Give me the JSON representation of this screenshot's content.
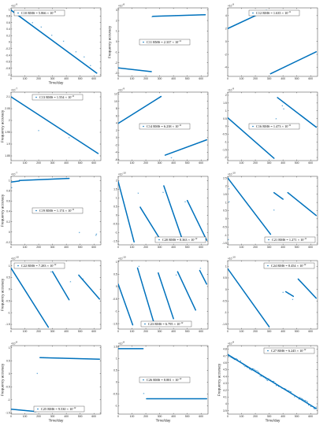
{
  "figure": {
    "marker_color": "#0072BD",
    "axis_color": "#262626"
  },
  "chart_data": [
    {
      "type": "scatter",
      "legend": "C10 RMS = 5.866 × 10^{-11}",
      "multiplier": "×10^{-9}",
      "xlabel": "Time/day",
      "ylabel": "",
      "xlim": [
        0,
        650
      ],
      "ylim": [
        -1.05,
        1.05
      ],
      "xticks": [
        0,
        100,
        200,
        300,
        400,
        500,
        600
      ],
      "yticks": [
        -1,
        -0.8,
        -0.6,
        -0.4,
        -0.2,
        0,
        0.2,
        0.4,
        0.6,
        0.8,
        1
      ],
      "legend_loc": "top-left",
      "segments": [
        {
          "x": [
            0,
            620
          ],
          "y": [
            0.98,
            -0.95
          ]
        }
      ],
      "points": {
        "x": [
          155,
          218,
          295,
          380,
          470,
          530,
          575
        ],
        "y": [
          0.58,
          0.45,
          0.19,
          0.02,
          -0.31,
          -0.47,
          -0.73
        ]
      }
    },
    {
      "type": "scatter",
      "legend": "C11 RMS = 2.337 × 10^{-11}",
      "multiplier": "×10^{-8}",
      "xlabel": "",
      "ylabel": "Frequency accuracy",
      "xlim": [
        0,
        650
      ],
      "ylim": [
        -3.3,
        3.2
      ],
      "xticks": [
        0,
        100,
        200,
        300,
        400,
        500,
        600
      ],
      "yticks": [
        -3,
        -2,
        -1,
        0,
        1,
        2,
        3
      ],
      "legend_loc": "center",
      "segments": [
        {
          "x": [
            0,
            240
          ],
          "y": [
            -2.5,
            -2.85
          ]
        },
        {
          "x": [
            250,
            630
          ],
          "y": [
            2.4,
            2.55
          ]
        }
      ],
      "points": {
        "x": [
          245
        ],
        "y": [
          2.3
        ]
      }
    },
    {
      "type": "scatter",
      "legend": "C12 RMS = 1.635 × 10^{-11}",
      "multiplier": "×10^{-9}",
      "xlabel": "",
      "ylabel": "",
      "xlim": [
        0,
        650
      ],
      "ylim": [
        -5.4,
        5.2
      ],
      "xticks": [
        0,
        100,
        200,
        300,
        400,
        500,
        600
      ],
      "yticks": [
        -4,
        -2,
        0,
        2,
        4
      ],
      "legend_loc": "top-center",
      "segments": [
        {
          "x": [
            0,
            280
          ],
          "y": [
            2.0,
            4.8
          ]
        },
        {
          "x": [
            310,
            640
          ],
          "y": [
            -5.0,
            -1.6
          ]
        }
      ],
      "points": {
        "x": [],
        "y": []
      }
    },
    {
      "type": "scatter",
      "legend": "C13 RMS = 1.554 × 10^{-11}",
      "multiplier": "×10^{-7}",
      "xlabel": "",
      "ylabel": "Frequency accuracy",
      "xlim": [
        0,
        650
      ],
      "ylim": [
        1.83,
        2.12
      ],
      "xticks": [
        0,
        100,
        200,
        300,
        400,
        500,
        600
      ],
      "yticks": [
        1.85,
        1.9,
        1.95,
        2.0,
        2.05,
        2.1
      ],
      "legend_loc": "top-center",
      "segments": [
        {
          "x": [
            0,
            630
          ],
          "y": [
            2.1,
            1.86
          ]
        }
      ],
      "points": {
        "x": [
          200,
          420
        ],
        "y": [
          1.955,
          1.925
        ]
      }
    },
    {
      "type": "scatter",
      "legend": "C14 RMS = 6.238 × 10^{-11}",
      "multiplier": "×10^{-9}",
      "xlabel": "",
      "ylabel": "",
      "xlim": [
        0,
        650
      ],
      "ylim": [
        -6.3,
        12.5
      ],
      "xticks": [
        0,
        100,
        200,
        300,
        400,
        500,
        600
      ],
      "yticks": [
        -6,
        -4,
        -2,
        0,
        2,
        4,
        6,
        8,
        10,
        12
      ],
      "legend_loc": "center",
      "segments": [
        {
          "x": [
            0,
            310
          ],
          "y": [
            3.9,
            11.3
          ]
        },
        {
          "x": [
            340,
            640
          ],
          "y": [
            -4.8,
            -0.6
          ]
        }
      ],
      "points": {
        "x": [
          385
        ],
        "y": [
          -5.6
        ]
      }
    },
    {
      "type": "scatter",
      "legend": "C16 RMS = 1.473 × 10^{-11}",
      "multiplier": "×10^{-9}",
      "xlabel": "",
      "ylabel": "",
      "xlim": [
        0,
        650
      ],
      "ylim": [
        -2.2,
        2.2
      ],
      "xticks": [
        0,
        100,
        200,
        300,
        400,
        500,
        600
      ],
      "yticks": [
        -2,
        -1.5,
        -1,
        -0.5,
        0,
        0.5,
        1,
        1.5,
        2
      ],
      "legend_loc": "center",
      "segments": [
        {
          "x": [
            0,
            335
          ],
          "y": [
            0.55,
            -2.05
          ]
        },
        {
          "x": [
            360,
            640
          ],
          "y": [
            1.85,
            -0.05
          ]
        }
      ],
      "points": {
        "x": [
          350,
          395,
          405
        ],
        "y": [
          0.45,
          1.3,
          1.1
        ]
      }
    },
    {
      "type": "scatter",
      "legend": "C19 RMS = 1.174 × 10^{-11}",
      "multiplier": "×10^{-7}",
      "xlabel": "",
      "ylabel": "Frequency accuracy",
      "xlim": [
        0,
        650
      ],
      "ylim": [
        -0.25,
        1.08
      ],
      "xticks": [
        0,
        100,
        200,
        300,
        400,
        500,
        600
      ],
      "yticks": [
        -0.2,
        0,
        0.2,
        0.4,
        0.6,
        0.8,
        1
      ],
      "legend_loc": "center",
      "segments": [
        {
          "x": [
            0,
            60
          ],
          "y": [
            0.97,
            0.99
          ]
        },
        {
          "x": [
            60,
            420
          ],
          "y": [
            1.0,
            1.04
          ]
        }
      ],
      "points": {
        "x": [
          5,
          495,
          615,
          618
        ],
        "y": [
          0.85,
          -0.02,
          -0.07,
          -0.05
        ]
      }
    },
    {
      "type": "scatter",
      "legend": "C20 RMS = 8.363 × 10^{-12}",
      "multiplier": "×10^{-10}",
      "xlabel": "",
      "ylabel": "",
      "xlim": [
        0,
        650
      ],
      "ylim": [
        -1.72,
        2.25
      ],
      "xticks": [
        0,
        100,
        200,
        300,
        400,
        500,
        600
      ],
      "yticks": [
        -1.5,
        -1,
        -0.5,
        0,
        0.5,
        1,
        1.5,
        2
      ],
      "legend_loc": "bottom-right",
      "segments": [
        {
          "x": [
            0,
            115
          ],
          "y": [
            1.95,
            -1.55
          ]
        },
        {
          "x": [
            160,
            315
          ],
          "y": [
            0.45,
            -1.55
          ]
        },
        {
          "x": [
            330,
            470
          ],
          "y": [
            1.7,
            -1.55
          ]
        },
        {
          "x": [
            500,
            640
          ],
          "y": [
            0.85,
            -1.45
          ]
        }
      ],
      "points": {
        "x": [
          145,
          160,
          325,
          485
        ],
        "y": [
          1.25,
          0.45,
          1.3,
          0.75
        ]
      }
    },
    {
      "type": "scatter",
      "legend": "C21 RMS = 1.271 × 10^{-11}",
      "multiplier": "×10^{-10}",
      "xlabel": "",
      "ylabel": "",
      "xlim": [
        0,
        650
      ],
      "ylim": [
        -1.6,
        2.6
      ],
      "xticks": [
        0,
        100,
        200,
        300,
        400,
        500,
        600
      ],
      "yticks": [
        -1.5,
        -1,
        -0.5,
        0,
        0.5,
        1,
        1.5,
        2,
        2.5
      ],
      "legend_loc": "bottom-right",
      "segments": [
        {
          "x": [
            0,
            310
          ],
          "y": [
            2.5,
            -0.95
          ]
        },
        {
          "x": [
            335,
            400
          ],
          "y": [
            1.6,
            1.2
          ]
        },
        {
          "x": [
            435,
            640
          ],
          "y": [
            1.6,
            0.2
          ]
        }
      ],
      "points": {
        "x": [
          10,
          5,
          335,
          10
        ],
        "y": [
          1.0,
          -1.3,
          0.5,
          1.8
        ]
      }
    },
    {
      "type": "scatter",
      "legend": "C22 RMS = 7.283 × 10^{-12}",
      "multiplier": "×10^{-10}",
      "xlabel": "",
      "ylabel": "Frequency accuracy",
      "xlim": [
        0,
        650
      ],
      "ylim": [
        -1.7,
        1.22
      ],
      "xticks": [
        0,
        100,
        200,
        300,
        400,
        500,
        600
      ],
      "yticks": [
        -1.5,
        -1,
        -0.5,
        0,
        0.5,
        1
      ],
      "legend_loc": "top-left",
      "segments": [
        {
          "x": [
            0,
            270
          ],
          "y": [
            0.9,
            -1.62
          ]
        },
        {
          "x": [
            300,
            420
          ],
          "y": [
            0.75,
            -0.45
          ]
        },
        {
          "x": [
            490,
            640
          ],
          "y": [
            0.6,
            -0.42
          ]
        }
      ],
      "points": {
        "x": [
          290,
          430,
          520
        ],
        "y": [
          0.72,
          0.3,
          0.42
        ]
      }
    },
    {
      "type": "scatter",
      "legend": "C23 RMS = 6.795 × 10^{-12}",
      "multiplier": "×10^{-10}",
      "xlabel": "",
      "ylabel": "",
      "xlim": [
        0,
        650
      ],
      "ylim": [
        -1.72,
        1.05
      ],
      "xticks": [
        0,
        100,
        200,
        300,
        400,
        500,
        600
      ],
      "yticks": [
        -1.5,
        -1,
        -0.5,
        0,
        0.5,
        1
      ],
      "legend_loc": "bottom-center",
      "segments": [
        {
          "x": [
            0,
            105
          ],
          "y": [
            0.1,
            -1.55
          ]
        },
        {
          "x": [
            140,
            260
          ],
          "y": [
            0.75,
            -1.5
          ]
        },
        {
          "x": [
            290,
            400
          ],
          "y": [
            0.55,
            -1.3
          ]
        },
        {
          "x": [
            430,
            560
          ],
          "y": [
            0.6,
            -0.95
          ]
        },
        {
          "x": [
            590,
            640
          ],
          "y": [
            0.65,
            0.1
          ]
        }
      ],
      "points": {
        "x": [
          150,
          420,
          595
        ],
        "y": [
          0.8,
          0.45,
          0.72
        ]
      }
    },
    {
      "type": "scatter",
      "legend": "C24 RMS = 8.454 × 10^{-12}",
      "multiplier": "×10^{-10}",
      "xlabel": "",
      "ylabel": "",
      "xlim": [
        0,
        650
      ],
      "ylim": [
        -1.72,
        1.25
      ],
      "xticks": [
        0,
        100,
        200,
        300,
        400,
        500,
        600
      ],
      "yticks": [
        -1.5,
        -1,
        -0.5,
        0,
        0.5,
        1
      ],
      "legend_loc": "top-right",
      "segments": [
        {
          "x": [
            0,
            300
          ],
          "y": [
            0.9,
            -1.62
          ]
        },
        {
          "x": [
            420,
            475
          ],
          "y": [
            -0.1,
            -0.3
          ]
        },
        {
          "x": [
            510,
            640
          ],
          "y": [
            0.45,
            -0.38
          ]
        }
      ],
      "points": {
        "x": [
          400,
          440,
          470
        ],
        "y": [
          -0.15,
          -0.2,
          -0.45
        ]
      }
    },
    {
      "type": "scatter",
      "legend": "C25 RMS = 9.530 × 10^{-12}",
      "multiplier": "×10^{-8}",
      "xlabel": "Time/day",
      "ylabel": "Frequency accuracy",
      "xlim": [
        0,
        650
      ],
      "ylim": [
        -1.55,
        1.08
      ],
      "xticks": [
        0,
        100,
        200,
        300,
        400,
        500,
        600
      ],
      "yticks": [
        -1.5,
        -1,
        -0.5,
        0,
        0.5,
        1
      ],
      "legend_loc": "bottom-center",
      "segments": [
        {
          "x": [
            0,
            180
          ],
          "y": [
            -1.36,
            -1.45
          ]
        },
        {
          "x": [
            210,
            640
          ],
          "y": [
            0.62,
            0.56
          ]
        }
      ],
      "points": {
        "x": [
          190
        ],
        "y": [
          0.0
        ]
      }
    },
    {
      "type": "scatter",
      "legend": "C26 RMS = 8.881 × 10^{-12}",
      "multiplier": "×10^{-8}",
      "xlabel": "Time/day",
      "ylabel": "",
      "xlim": [
        0,
        650
      ],
      "ylim": [
        -1.35,
        1.55
      ],
      "xticks": [
        0,
        100,
        200,
        300,
        400,
        500,
        600
      ],
      "yticks": [
        -1,
        -0.5,
        0,
        0.5,
        1,
        1.5
      ],
      "legend_loc": "center",
      "segments": [
        {
          "x": [
            0,
            180
          ],
          "y": [
            1.42,
            1.42
          ]
        },
        {
          "x": [
            205,
            640
          ],
          "y": [
            -0.7,
            -0.7
          ]
        }
      ],
      "points": {
        "x": [
          185
        ],
        "y": [
          -0.5
        ]
      }
    },
    {
      "type": "scatter",
      "legend": "C27 RMS = 6.245 × 10^{-12}",
      "multiplier": "×10^{-8}",
      "xlabel": "Time/day",
      "ylabel": "Frequency accuracy",
      "xlim": [
        0,
        650
      ],
      "ylim": [
        3.85,
        4.85
      ],
      "xticks": [
        0,
        100,
        200,
        300,
        400,
        500,
        600
      ],
      "yticks": [
        3.9,
        4.0,
        4.1,
        4.2,
        4.3,
        4.4,
        4.5,
        4.6,
        4.7,
        4.8
      ],
      "legend_loc": "top-right",
      "segments": [
        {
          "x": [
            0,
            640
          ],
          "y": [
            4.72,
            3.93
          ]
        }
      ],
      "points": {
        "x": [],
        "y": []
      }
    }
  ]
}
